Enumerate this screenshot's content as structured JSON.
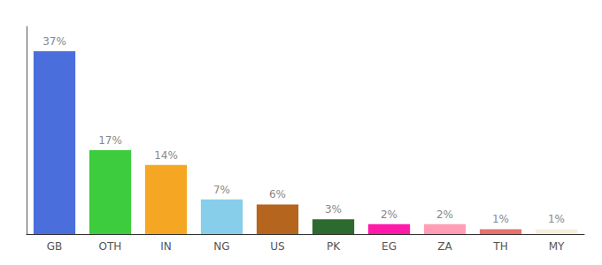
{
  "chart_data": {
    "type": "bar",
    "categories": [
      "GB",
      "OTH",
      "IN",
      "NG",
      "US",
      "PK",
      "EG",
      "ZA",
      "TH",
      "MY"
    ],
    "values": [
      37,
      17,
      14,
      7,
      6,
      3,
      2,
      2,
      1,
      1
    ],
    "value_labels": [
      "37%",
      "17%",
      "14%",
      "7%",
      "6%",
      "3%",
      "2%",
      "2%",
      "1%",
      "1%"
    ],
    "colors": [
      "#4a6fdc",
      "#3dcc3d",
      "#f5a623",
      "#87ceeb",
      "#b5651d",
      "#2d6a2d",
      "#ff1aaa",
      "#ff9eb5",
      "#e8736c",
      "#f5f0dc"
    ],
    "ylim": [
      0,
      42
    ],
    "data_labels": true,
    "tick_labels": "x",
    "grid": false
  }
}
